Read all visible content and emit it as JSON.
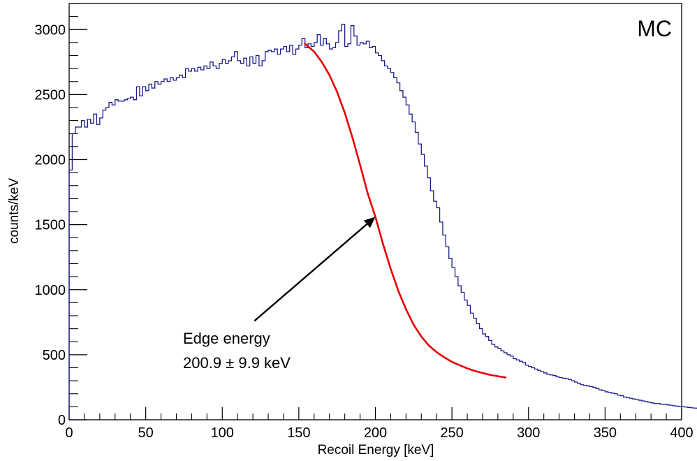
{
  "chart_data": {
    "type": "line",
    "xlabel": "Recoil Energy [keV]",
    "ylabel": "counts/keV",
    "xlim": [
      0,
      400
    ],
    "ylim": [
      0,
      3200
    ],
    "x_ticks": [
      0,
      50,
      100,
      150,
      200,
      250,
      300,
      350,
      400
    ],
    "x_tick_labels": [
      "0",
      "50",
      "100",
      "150",
      "200",
      "250",
      "300",
      "350",
      "400"
    ],
    "y_ticks": [
      0,
      500,
      1000,
      1500,
      2000,
      2500,
      3000
    ],
    "y_tick_labels": [
      "0",
      "500",
      "1000",
      "1500",
      "2000",
      "2500",
      "3000"
    ],
    "corner_label": "MC",
    "annotation": {
      "line1": "Edge energy",
      "line2": "200.9 ± 9.9 keV",
      "arrow_tail": [
        121,
        760
      ],
      "arrow_head": [
        200,
        1560
      ]
    },
    "colors": {
      "histogram": "#1a1a8c",
      "fit": "#e60000",
      "arrow": "#000000"
    },
    "series": [
      {
        "type": "histogram",
        "bin_width": 2,
        "x_start": 0,
        "values": [
          1920,
          2200,
          2250,
          2250,
          2300,
          2250,
          2310,
          2280,
          2350,
          2270,
          2320,
          2380,
          2400,
          2440,
          2420,
          2460,
          2450,
          2450,
          2460,
          2470,
          2480,
          2460,
          2560,
          2490,
          2560,
          2530,
          2580,
          2550,
          2600,
          2580,
          2600,
          2620,
          2600,
          2630,
          2610,
          2630,
          2650,
          2630,
          2700,
          2680,
          2700,
          2680,
          2710,
          2690,
          2720,
          2700,
          2750,
          2720,
          2700,
          2740,
          2770,
          2740,
          2760,
          2790,
          2830,
          2760,
          2740,
          2780,
          2720,
          2790,
          2740,
          2800,
          2720,
          2760,
          2830,
          2840,
          2830,
          2850,
          2810,
          2850,
          2870,
          2830,
          2880,
          2810,
          2850,
          2880,
          2930,
          2860,
          2890,
          2870,
          2900,
          2960,
          2880,
          2930,
          2890,
          2850,
          2860,
          2900,
          2990,
          3040,
          2870,
          2890,
          3030,
          2950,
          2880,
          2900,
          2890,
          2910,
          2860,
          2870,
          2820,
          2800,
          2760,
          2720,
          2700,
          2670,
          2630,
          2590,
          2530,
          2480,
          2420,
          2350,
          2290,
          2210,
          2120,
          2040,
          1950,
          1860,
          1760,
          1680,
          1630,
          1520,
          1420,
          1330,
          1240,
          1170,
          1100,
          1030,
          980,
          920,
          880,
          820,
          780,
          740,
          700,
          660,
          640,
          610,
          580,
          560,
          550,
          530,
          515,
          500,
          490,
          470,
          460,
          450,
          440,
          420,
          410,
          400,
          390,
          380,
          370,
          360,
          350,
          345,
          340,
          330,
          325,
          320,
          315,
          310,
          300,
          290,
          280,
          270,
          265,
          260,
          255,
          250,
          240,
          230,
          225,
          215,
          210,
          205,
          200,
          190,
          185,
          175,
          170,
          165,
          160,
          155,
          150,
          145,
          140,
          135,
          130,
          125,
          125,
          120,
          118,
          115,
          112,
          108,
          105,
          102,
          100,
          98,
          95,
          92,
          90,
          88,
          86,
          85,
          83,
          82,
          80,
          80
        ]
      },
      {
        "type": "fit",
        "x": [
          154,
          160,
          165,
          170,
          175,
          180,
          185,
          190,
          195,
          200,
          205,
          210,
          215,
          220,
          225,
          230,
          235,
          240,
          245,
          250,
          255,
          260,
          265,
          270,
          275,
          280,
          285
        ],
        "values": [
          2890,
          2830,
          2750,
          2650,
          2520,
          2360,
          2170,
          1960,
          1740,
          1560,
          1350,
          1160,
          990,
          850,
          730,
          640,
          570,
          520,
          480,
          445,
          420,
          395,
          375,
          360,
          345,
          335,
          325
        ]
      }
    ]
  }
}
